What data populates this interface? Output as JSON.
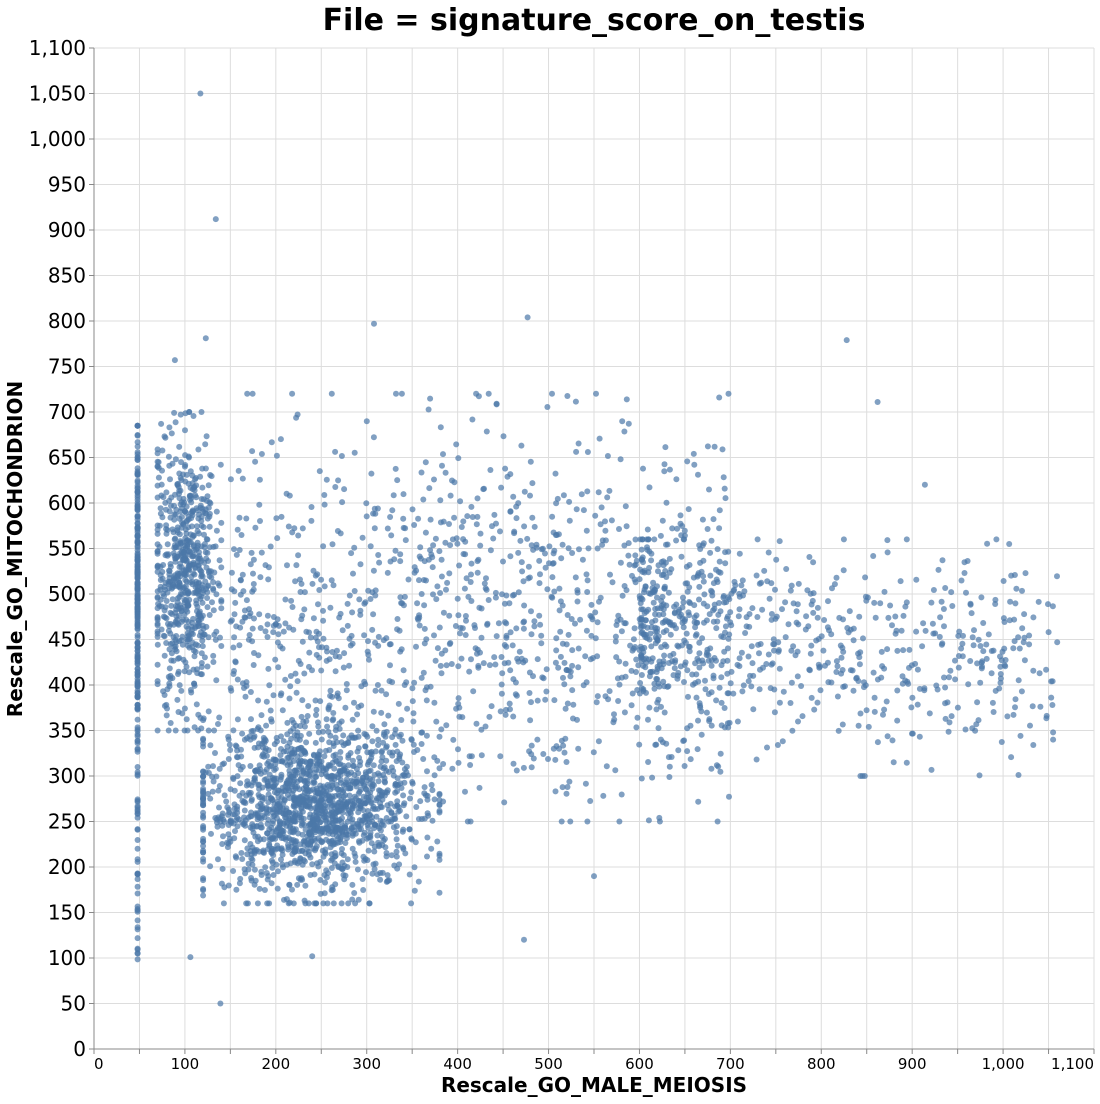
{
  "chart_data": {
    "type": "scatter",
    "title": "File =  signature_score_on_testis",
    "xlabel": "Rescale_GO_MALE_MEIOSIS",
    "ylabel": "Rescale_GO_MITOCHONDRION",
    "xlim": [
      0,
      1100
    ],
    "ylim": [
      0,
      1100
    ],
    "grid": true,
    "x_ticks": [
      "0",
      "100",
      "200",
      "300",
      "400",
      "500",
      "600",
      "700",
      "800",
      "900",
      "1,000",
      "1,100"
    ],
    "y_ticks": [
      "0",
      "50",
      "100",
      "150",
      "200",
      "250",
      "300",
      "350",
      "400",
      "450",
      "500",
      "550",
      "600",
      "650",
      "700",
      "750",
      "800",
      "850",
      "900",
      "950",
      "1,000",
      "1,050",
      "1,100"
    ],
    "point_color": "#4c78a8",
    "point_opacity": 0.7,
    "approx_point_count": 4200,
    "clusters": [
      {
        "description": "vertical strip at x=48",
        "x": [
          48,
          48
        ],
        "y": [
          90,
          685
        ],
        "count": 260
      },
      {
        "description": "dense upper-left cluster",
        "x": [
          70,
          140
        ],
        "y": [
          350,
          700
        ],
        "count": 650
      },
      {
        "description": "dense lower cluster",
        "x": [
          120,
          380
        ],
        "y": [
          160,
          400
        ],
        "count": 1500
      },
      {
        "description": "diffuse middle band",
        "x": [
          150,
          700
        ],
        "y": [
          250,
          720
        ],
        "count": 1150
      },
      {
        "description": "right tail",
        "x": [
          600,
          1060
        ],
        "y": [
          300,
          560
        ],
        "count": 640
      }
    ],
    "outliers": [
      {
        "x": 117,
        "y": 1050
      },
      {
        "x": 134,
        "y": 912
      },
      {
        "x": 123,
        "y": 781
      },
      {
        "x": 308,
        "y": 797
      },
      {
        "x": 477,
        "y": 804
      },
      {
        "x": 828,
        "y": 779
      },
      {
        "x": 139,
        "y": 50
      },
      {
        "x": 106,
        "y": 101
      },
      {
        "x": 240,
        "y": 102
      },
      {
        "x": 1048,
        "y": 366
      },
      {
        "x": 1041,
        "y": 376
      },
      {
        "x": 997,
        "y": 420
      },
      {
        "x": 473,
        "y": 120
      },
      {
        "x": 914,
        "y": 620
      },
      {
        "x": 89,
        "y": 757
      },
      {
        "x": 862,
        "y": 711
      },
      {
        "x": 698,
        "y": 720
      },
      {
        "x": 550,
        "y": 190
      }
    ]
  }
}
